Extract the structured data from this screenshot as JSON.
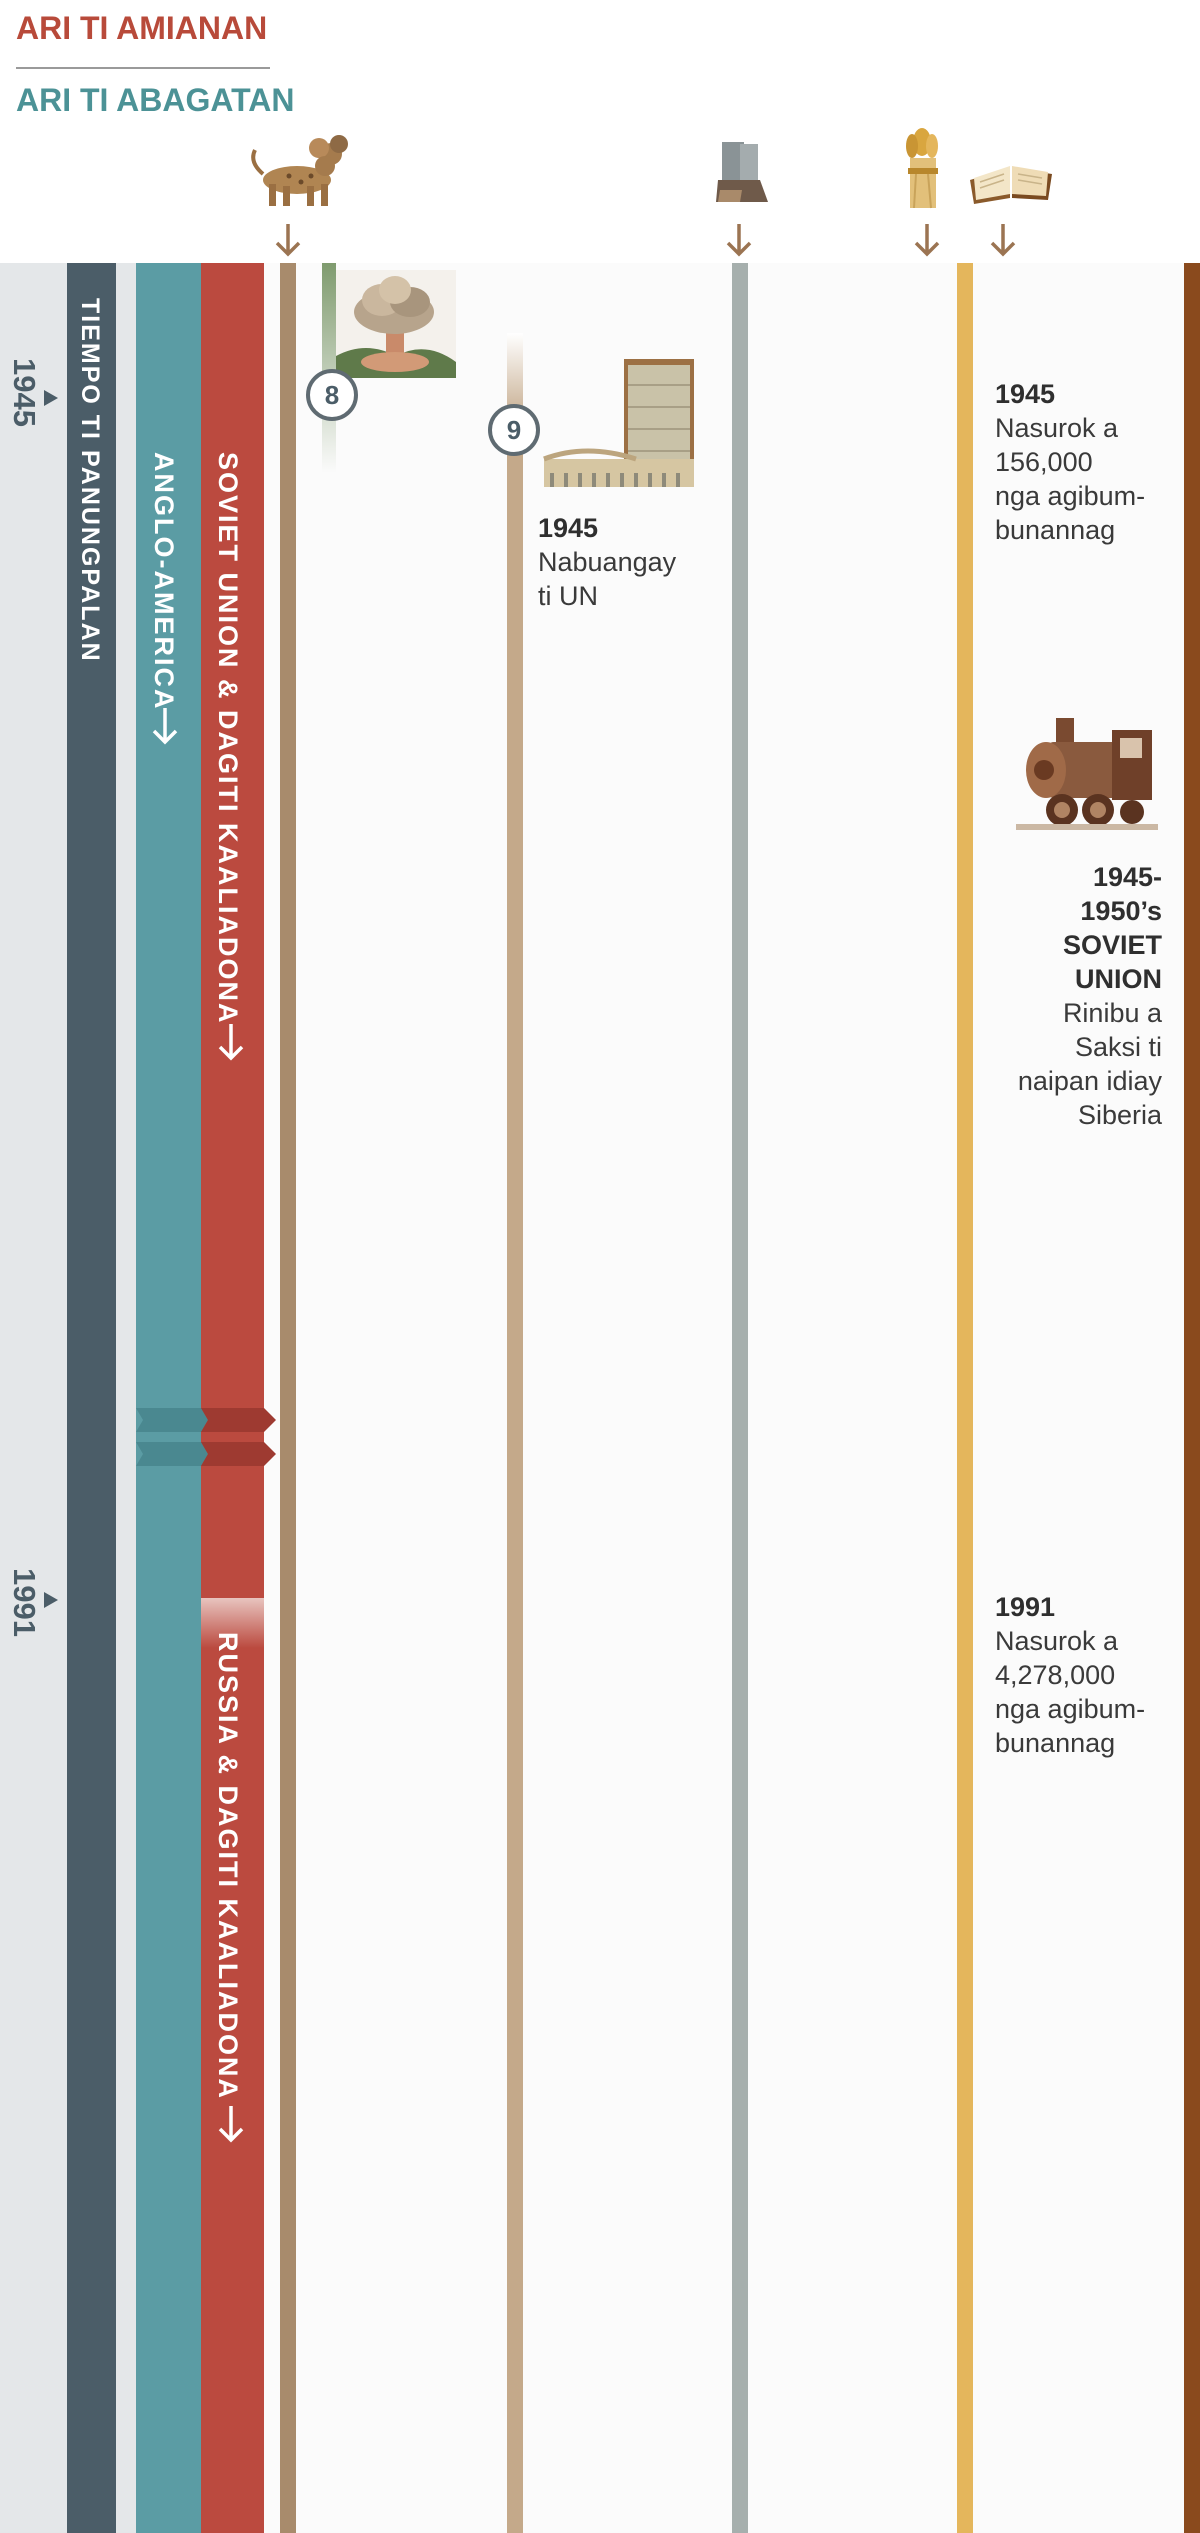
{
  "legend": {
    "north": "ARI TI AMIANAN",
    "south": "ARI TI ABAGATAN"
  },
  "colors": {
    "north": "#b84a3a",
    "south": "#4c9296",
    "end_time": "#4b5d68",
    "anglo_america": "#5b9ca4",
    "soviet_union": "#bb4a3f",
    "beast_line": "#a88b6c",
    "un_line": "#c4a98a",
    "feet_line": "#a6afad",
    "wheat_line": "#e4b65c",
    "bible_line": "#8a4a1d"
  },
  "bands": {
    "end_time": "TIEMPO TI PANUNGPALAN",
    "anglo_america": "ANGLO-AMERICA",
    "soviet": "SOVIET UNION & DAGITI KAALIADONA",
    "russia": "RUSSIA & DAGITI KAALIADONA"
  },
  "years": {
    "y1945": "1945",
    "y1991": "1991"
  },
  "icons": {
    "beast": "leopard-beast-icon",
    "feet": "iron-clay-feet-icon",
    "wheat": "wheat-sheaf-icon",
    "bible": "open-bible-icon",
    "bomb": "atomic-bomb-icon",
    "un": "un-building-icon",
    "train": "steam-train-icon"
  },
  "markers": {
    "m8": "8",
    "m9": "9"
  },
  "events": {
    "un": {
      "year": "1945",
      "text_line1": "Nabuangay",
      "text_line2": "ti UN"
    },
    "growth1945": {
      "year": "1945",
      "line1": "Nasurok a",
      "line2": "156,000",
      "line3": "nga agibum-",
      "line4": "bunannag"
    },
    "siberia": {
      "year_line1": "1945-",
      "year_line2": "1950’s",
      "year_line3": "SOVIET",
      "year_line4": "UNION",
      "line1": "Rinibu a",
      "line2": "Saksi ti",
      "line3": "naipan idiay",
      "line4": "Siberia"
    },
    "growth1991": {
      "year": "1991",
      "line1": "Nasurok a",
      "line2": "4,278,000",
      "line3": "nga agibum-",
      "line4": "bunannag"
    }
  }
}
